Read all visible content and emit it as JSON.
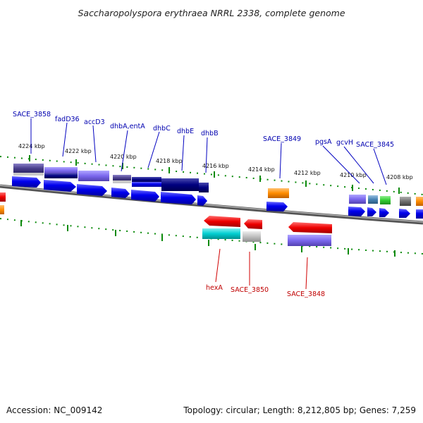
{
  "title": "Saccharopolyspora erythraea NRRL 2338, complete genome",
  "footer": {
    "accession": "Accession: NC_009142",
    "topology": "Topology: circular; Length: 8,212,805 bp; Genes: 7,259"
  },
  "ticks": [
    "4224 kbp",
    "4222 kbp",
    "4220 kbp",
    "4218 kbp",
    "4216 kbp",
    "4214 kbp",
    "4212 kbp",
    "4210 kbp",
    "4208 kbp"
  ],
  "genes_top": [
    "SACE_3858",
    "fadD36",
    "accD3",
    "dhbA,entA",
    "dhbC",
    "dhbE",
    "dhbB",
    "SACE_3849",
    "pgsA",
    "gcvH",
    "SACE_3845"
  ],
  "genes_bottom": [
    "hexA",
    "SACE_3850",
    "SACE_3848"
  ],
  "colors": {
    "cds_blue": "#0000ee",
    "purple": "#7b68ee",
    "navy": "#000080",
    "red": "#ee0000",
    "orange": "#ff8c00",
    "cyan": "#00ced1",
    "green": "#32cd32",
    "steel": "#4682b4",
    "gray": "#808080",
    "silver": "#c0c0c0",
    "backbone": "#808080",
    "tick": "#008000"
  }
}
